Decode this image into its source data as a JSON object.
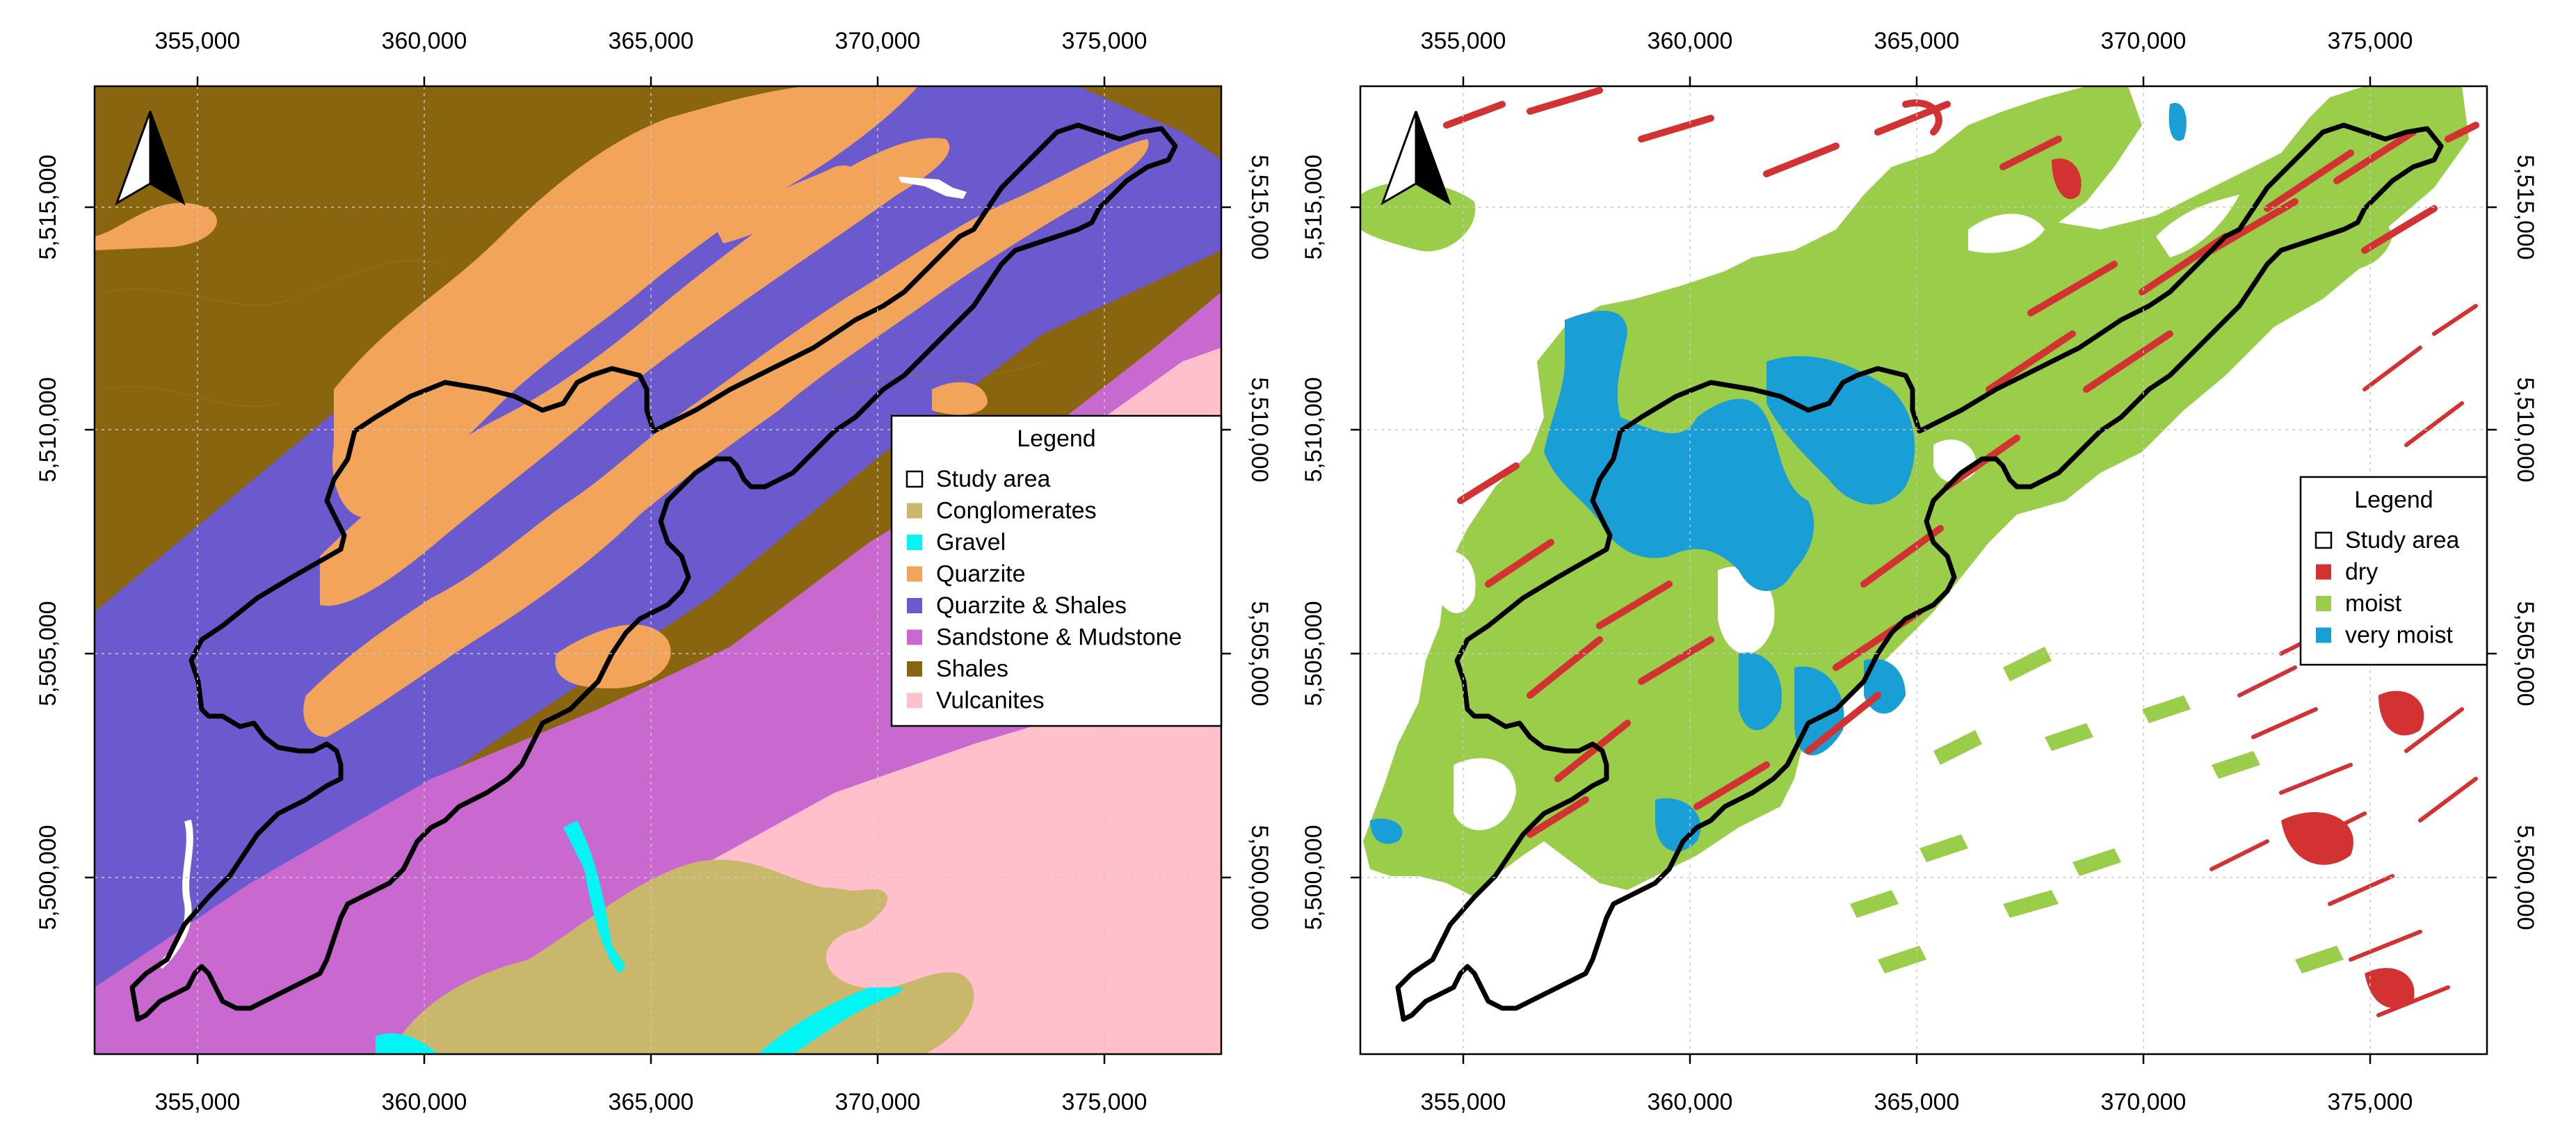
{
  "axes": {
    "x_ticks": [
      "355,000",
      "360,000",
      "365,000",
      "370,000",
      "375,000"
    ],
    "y_ticks": [
      "5,500,000",
      "5,505,000",
      "5,510,000",
      "5,515,000"
    ]
  },
  "geology_map": {
    "legend": {
      "title": "Legend",
      "items": [
        {
          "label": "Study area",
          "color": "#ffffff",
          "outline": true
        },
        {
          "label": "Conglomerates",
          "color": "#c9b86c"
        },
        {
          "label": "Gravel",
          "color": "#00f5f5"
        },
        {
          "label": "Quarzite",
          "color": "#f2a55a"
        },
        {
          "label": "Quarzite & Shales",
          "color": "#6a5acd"
        },
        {
          "label": "Sandstone & Mudstone",
          "color": "#c969cf"
        },
        {
          "label": "Shales",
          "color": "#8a6510"
        },
        {
          "label": "Vulcanites",
          "color": "#ffc0cb"
        }
      ]
    }
  },
  "moisture_map": {
    "legend": {
      "title": "Legend",
      "items": [
        {
          "label": "Study area",
          "color": "#ffffff",
          "outline": true
        },
        {
          "label": "dry",
          "color": "#d23232"
        },
        {
          "label": "moist",
          "color": "#9acd4a"
        },
        {
          "label": "very moist",
          "color": "#1a9ed6"
        }
      ]
    }
  },
  "north_arrow_icon": "north-arrow-icon"
}
